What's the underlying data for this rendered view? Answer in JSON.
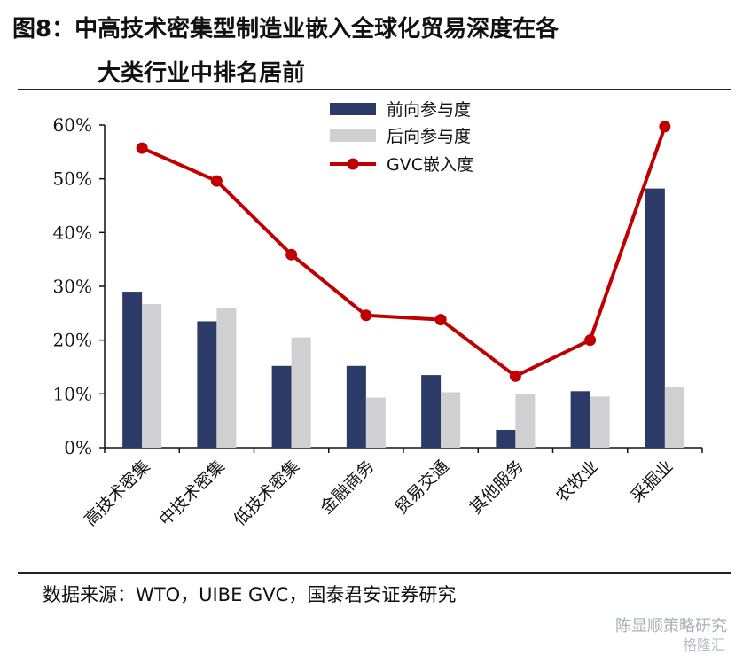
{
  "title": {
    "line1": "图8：中高技术密集型制造业嵌入全球化贸易深度在各",
    "line2": "大类行业中排名居前"
  },
  "source": "数据来源：WTO，UIBE GVC，国泰君安证券研究",
  "watermark": "陈显顺策略研究",
  "watermark2": "格隆汇",
  "colors": {
    "forward": "#2b3a67",
    "backward": "#d0cfd2",
    "line": "#c00000"
  },
  "chart_data": {
    "type": "bar",
    "title": "",
    "categories": [
      "高技术密集",
      "中技术密集",
      "低技术密集",
      "金融商务",
      "贸易交通",
      "其他服务",
      "农牧业",
      "采掘业"
    ],
    "series": [
      {
        "name": "前向参与度",
        "type": "bar",
        "values": [
          29,
          23.5,
          15.2,
          15.2,
          13.5,
          3.3,
          10.5,
          48.2
        ]
      },
      {
        "name": "后向参与度",
        "type": "bar",
        "values": [
          26.7,
          26,
          20.5,
          9.3,
          10.3,
          10,
          9.5,
          11.3
        ]
      },
      {
        "name": "GVC嵌入度",
        "type": "line",
        "values": [
          55.7,
          49.6,
          35.9,
          24.6,
          23.8,
          13.3,
          20,
          59.7
        ]
      }
    ],
    "yticks": [
      "0%",
      "10%",
      "20%",
      "30%",
      "40%",
      "50%",
      "60%"
    ],
    "ylim": [
      0,
      60
    ],
    "xlabel": "",
    "ylabel": "",
    "legend": "top-center"
  }
}
